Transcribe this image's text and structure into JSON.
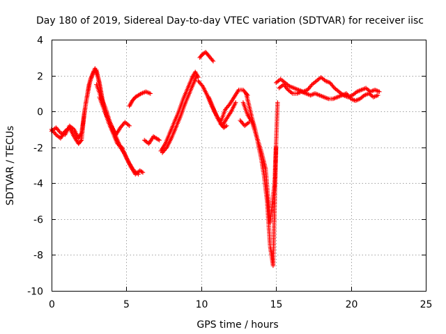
{
  "chart_data": {
    "type": "scatter",
    "title": "Day 180 of 2019, Sidereal Day-to-day VTEC variation (SDTVAR) for receiver iisc",
    "xlabel": "GPS time / hours",
    "ylabel": "SDTVAR / TECUs",
    "xlim": [
      0,
      25
    ],
    "ylim": [
      -10,
      4
    ],
    "xticks": [
      0,
      5,
      10,
      15,
      20,
      25
    ],
    "xtick_labels": [
      "0",
      "5",
      "10",
      "15",
      "20",
      "25"
    ],
    "yticks": [
      -10,
      -8,
      -6,
      -4,
      -2,
      0,
      2,
      4
    ],
    "ytick_labels": [
      "-10",
      "-8",
      "-6",
      "-4",
      "-2",
      "0",
      "2",
      "4"
    ],
    "grid": true,
    "marker": "plus",
    "color": "#ff0000",
    "series": [
      {
        "name": "SDTVAR",
        "tracks": [
          {
            "x": [
              0.0,
              0.3,
              0.6,
              0.9,
              1.2,
              1.5,
              1.8,
              2.0,
              2.2,
              2.5,
              2.8,
              3.0,
              3.2,
              3.5,
              3.8,
              4.1,
              4.4,
              4.7,
              5.0,
              5.3,
              5.6,
              5.9,
              6.1
            ],
            "y": [
              -1.0,
              -1.3,
              -1.5,
              -1.1,
              -0.9,
              -1.4,
              -1.8,
              -1.6,
              0.0,
              1.5,
              2.2,
              2.3,
              1.6,
              0.2,
              -0.6,
              -1.2,
              -1.8,
              -2.0,
              -2.6,
              -3.1,
              -3.5,
              -3.3,
              -3.4
            ]
          },
          {
            "x": [
              0.0,
              0.3,
              0.6,
              0.9,
              1.2,
              1.5,
              1.8,
              2.0,
              2.3,
              2.6,
              2.9,
              3.1,
              3.4,
              3.7,
              4.0,
              4.3,
              4.6,
              4.9,
              5.2,
              5.5,
              5.8
            ],
            "y": [
              -1.1,
              -0.9,
              -1.2,
              -1.3,
              -0.8,
              -1.0,
              -1.5,
              -1.2,
              0.5,
              1.8,
              2.4,
              1.9,
              0.6,
              -0.2,
              -0.9,
              -1.5,
              -2.0,
              -2.4,
              -2.9,
              -3.3,
              -3.5
            ]
          },
          {
            "x": [
              3.0,
              3.3,
              3.6,
              3.9,
              4.2,
              4.5
            ],
            "y": [
              1.5,
              0.8,
              0.2,
              -0.6,
              -1.2,
              -1.8
            ]
          },
          {
            "x": [
              3.2,
              3.6,
              4.0,
              4.3,
              4.6,
              4.9,
              5.2
            ],
            "y": [
              0.8,
              -0.1,
              -0.8,
              -1.3,
              -0.9,
              -0.6,
              -0.8
            ]
          },
          {
            "x": [
              5.2,
              5.4,
              5.6,
              5.8,
              6.0,
              6.3,
              6.6
            ],
            "y": [
              0.3,
              0.6,
              0.8,
              0.9,
              1.0,
              1.1,
              1.0
            ]
          },
          {
            "x": [
              6.2,
              6.5,
              6.8,
              7.0,
              7.2
            ],
            "y": [
              -1.6,
              -1.8,
              -1.4,
              -1.5,
              -1.6
            ]
          },
          {
            "x": [
              7.3,
              7.6,
              7.9,
              8.2,
              8.5,
              8.8,
              9.1,
              9.4,
              9.6,
              9.8
            ],
            "y": [
              -2.2,
              -1.8,
              -1.2,
              -0.6,
              0.0,
              0.7,
              1.3,
              1.9,
              2.2,
              1.9
            ]
          },
          {
            "x": [
              7.4,
              7.7,
              8.0,
              8.3,
              8.6,
              8.9,
              9.2,
              9.5,
              9.7
            ],
            "y": [
              -2.3,
              -2.0,
              -1.5,
              -0.9,
              -0.3,
              0.4,
              1.0,
              1.6,
              2.0
            ]
          },
          {
            "x": [
              9.8,
              10.1,
              10.4,
              10.7,
              11.0,
              11.3,
              11.6,
              11.9,
              12.2,
              12.5,
              12.8,
              13.1
            ],
            "y": [
              1.7,
              1.4,
              0.9,
              0.3,
              -0.2,
              -0.6,
              0.1,
              0.4,
              0.8,
              1.2,
              1.2,
              0.9
            ]
          },
          {
            "x": [
              10.5,
              10.8,
              11.1,
              11.4,
              11.7,
              12.0,
              12.3
            ],
            "y": [
              0.8,
              0.2,
              -0.4,
              -0.8,
              -0.4,
              0.0,
              0.5
            ]
          },
          {
            "x": [
              11.3,
              11.5,
              11.7
            ],
            "y": [
              -0.7,
              -0.9,
              -0.8
            ]
          },
          {
            "x": [
              9.9,
              10.1,
              10.3,
              10.5,
              10.8
            ],
            "y": [
              3.0,
              3.2,
              3.3,
              3.1,
              2.8
            ]
          },
          {
            "x": [
              13.0,
              13.2,
              13.4,
              13.6,
              13.8,
              14.0,
              14.2,
              14.4,
              14.6,
              14.8,
              15.0
            ],
            "y": [
              1.0,
              0.3,
              -0.4,
              -1.0,
              -1.8,
              -2.6,
              -3.6,
              -5.0,
              -7.5,
              -8.6,
              -2.0
            ]
          },
          {
            "x": [
              12.8,
              13.1,
              13.4,
              13.7,
              14.0,
              14.3,
              14.6,
              14.9,
              15.1
            ],
            "y": [
              0.5,
              -0.2,
              -0.6,
              -1.4,
              -2.2,
              -3.2,
              -6.2,
              -4.0,
              0.5
            ]
          },
          {
            "x": [
              12.6,
              12.9,
              13.2
            ],
            "y": [
              -0.5,
              -0.8,
              -0.6
            ]
          },
          {
            "x": [
              15.0,
              15.3,
              15.6,
              15.9,
              16.2,
              16.5,
              16.8,
              17.1,
              17.4,
              17.7,
              18.0,
              18.3,
              18.6,
              18.9,
              19.2,
              19.5,
              19.8,
              20.1,
              20.4,
              20.7,
              21.0,
              21.3,
              21.6,
              21.9
            ],
            "y": [
              1.6,
              1.8,
              1.6,
              1.4,
              1.3,
              1.2,
              1.1,
              1.2,
              1.5,
              1.7,
              1.9,
              1.7,
              1.6,
              1.3,
              1.1,
              0.9,
              0.8,
              0.9,
              1.1,
              1.2,
              1.3,
              1.1,
              1.2,
              1.1
            ]
          },
          {
            "x": [
              15.2,
              15.5,
              15.8,
              16.1,
              16.4,
              16.7,
              17.0,
              17.3,
              17.6,
              17.9,
              18.2,
              18.5,
              18.8,
              19.1,
              19.4,
              19.7,
              20.0,
              20.3,
              20.6,
              20.9,
              21.2,
              21.5,
              21.8
            ],
            "y": [
              1.3,
              1.5,
              1.2,
              1.0,
              1.0,
              1.1,
              1.0,
              0.9,
              1.0,
              0.9,
              0.8,
              0.7,
              0.7,
              0.8,
              0.9,
              1.0,
              0.7,
              0.6,
              0.7,
              0.9,
              1.0,
              0.8,
              0.9
            ]
          }
        ]
      }
    ]
  }
}
